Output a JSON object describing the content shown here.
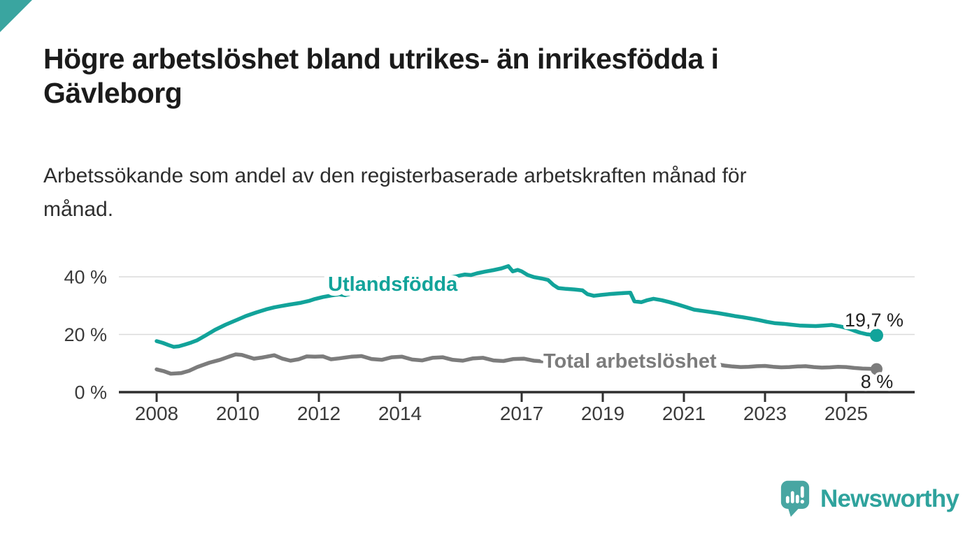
{
  "header": {
    "title_lines": [
      "Högre arbetslöshet bland utrikes- än inrikesfödda i",
      "Gävleborg"
    ],
    "subtitle_lines": [
      "Arbetssökande som andel av den registerbaserade arbetskraften månad för",
      "månad."
    ]
  },
  "footer": {
    "brand": "Newsworthy"
  },
  "colors": {
    "accent_teal": "#12a39a",
    "line_gray": "#7c7c7c",
    "brand_teal_bubble": "#48a6a2",
    "brand_teal_text": "#2fa39d",
    "corner_triangle": "#3aa5a0",
    "grid": "#dadada",
    "axis": "#2f2f2f",
    "tick_label": "#3b3b3b",
    "end_label": "#222222"
  },
  "chart_data": {
    "type": "line",
    "title": "Högre arbetslöshet bland utrikes- än inrikesfödda i Gävleborg",
    "subtitle": "Arbetssökande som andel av den registerbaserade arbetskraften månad för månad.",
    "xlabel": "",
    "ylabel": "",
    "xlim": [
      2007.1,
      2026.7
    ],
    "ylim": [
      0,
      45
    ],
    "grid": "horizontal",
    "legend_position": "inline-labels",
    "xticks": [
      2008,
      2010,
      2012,
      2014,
      2017,
      2019,
      2021,
      2023,
      2025
    ],
    "yticks": [
      {
        "value": 0,
        "label": "0 %"
      },
      {
        "value": 20,
        "label": "20 %"
      },
      {
        "value": 40,
        "label": "40 %"
      }
    ],
    "series": [
      {
        "name": "Utlandsfödda",
        "color": "#12a39a",
        "end_label": "19,7 %",
        "end_value": 19.7,
        "points": [
          [
            2008.0,
            17.7
          ],
          [
            2008.15,
            17.1
          ],
          [
            2008.3,
            16.3
          ],
          [
            2008.42,
            15.7
          ],
          [
            2008.55,
            15.9
          ],
          [
            2008.7,
            16.5
          ],
          [
            2008.85,
            17.2
          ],
          [
            2009.0,
            18.0
          ],
          [
            2009.2,
            19.6
          ],
          [
            2009.44,
            21.6
          ],
          [
            2009.7,
            23.4
          ],
          [
            2010.0,
            25.2
          ],
          [
            2010.2,
            26.4
          ],
          [
            2010.45,
            27.6
          ],
          [
            2010.7,
            28.7
          ],
          [
            2010.9,
            29.4
          ],
          [
            2011.05,
            29.8
          ],
          [
            2011.25,
            30.3
          ],
          [
            2011.56,
            31.0
          ],
          [
            2011.75,
            31.6
          ],
          [
            2011.9,
            32.3
          ],
          [
            2012.1,
            33.0
          ],
          [
            2012.3,
            33.5
          ],
          [
            2012.5,
            33.9
          ],
          [
            2012.65,
            33.6
          ],
          [
            2012.8,
            34.2
          ],
          [
            2013.0,
            34.8
          ],
          [
            2013.25,
            35.4
          ],
          [
            2013.5,
            36.0
          ],
          [
            2013.75,
            36.7
          ],
          [
            2014.0,
            37.3
          ],
          [
            2014.25,
            37.9
          ],
          [
            2014.5,
            38.4
          ],
          [
            2014.75,
            39.0
          ],
          [
            2015.0,
            39.4
          ],
          [
            2015.2,
            39.7
          ],
          [
            2015.4,
            40.2
          ],
          [
            2015.6,
            40.8
          ],
          [
            2015.75,
            40.6
          ],
          [
            2015.9,
            41.2
          ],
          [
            2016.1,
            41.8
          ],
          [
            2016.3,
            42.3
          ],
          [
            2016.5,
            42.9
          ],
          [
            2016.67,
            43.7
          ],
          [
            2016.78,
            41.9
          ],
          [
            2016.9,
            42.4
          ],
          [
            2017.0,
            41.9
          ],
          [
            2017.15,
            40.6
          ],
          [
            2017.3,
            39.9
          ],
          [
            2017.5,
            39.4
          ],
          [
            2017.65,
            38.9
          ],
          [
            2017.78,
            37.2
          ],
          [
            2017.9,
            36.1
          ],
          [
            2018.1,
            35.8
          ],
          [
            2018.3,
            35.6
          ],
          [
            2018.5,
            35.3
          ],
          [
            2018.62,
            34.0
          ],
          [
            2018.78,
            33.4
          ],
          [
            2018.95,
            33.7
          ],
          [
            2019.15,
            34.0
          ],
          [
            2019.35,
            34.2
          ],
          [
            2019.55,
            34.4
          ],
          [
            2019.68,
            34.5
          ],
          [
            2019.78,
            31.5
          ],
          [
            2019.95,
            31.2
          ],
          [
            2020.1,
            31.9
          ],
          [
            2020.25,
            32.4
          ],
          [
            2020.45,
            31.9
          ],
          [
            2020.65,
            31.2
          ],
          [
            2020.85,
            30.4
          ],
          [
            2021.05,
            29.5
          ],
          [
            2021.25,
            28.6
          ],
          [
            2021.45,
            28.2
          ],
          [
            2021.65,
            27.8
          ],
          [
            2021.85,
            27.4
          ],
          [
            2022.05,
            26.9
          ],
          [
            2022.25,
            26.4
          ],
          [
            2022.45,
            26.0
          ],
          [
            2022.65,
            25.5
          ],
          [
            2022.85,
            25.0
          ],
          [
            2023.05,
            24.4
          ],
          [
            2023.25,
            23.9
          ],
          [
            2023.45,
            23.7
          ],
          [
            2023.65,
            23.4
          ],
          [
            2023.85,
            23.1
          ],
          [
            2024.05,
            23.0
          ],
          [
            2024.25,
            22.9
          ],
          [
            2024.45,
            23.1
          ],
          [
            2024.65,
            23.3
          ],
          [
            2024.85,
            22.8
          ],
          [
            2025.05,
            22.1
          ],
          [
            2025.2,
            21.3
          ],
          [
            2025.35,
            20.6
          ],
          [
            2025.5,
            20.1
          ],
          [
            2025.62,
            19.9
          ],
          [
            2025.75,
            19.7
          ]
        ]
      },
      {
        "name": "Total arbetslöshet",
        "color": "#7c7c7c",
        "end_label": "8 %",
        "end_value": 8.0,
        "points": [
          [
            2008.0,
            7.9
          ],
          [
            2008.17,
            7.3
          ],
          [
            2008.35,
            6.4
          ],
          [
            2008.6,
            6.6
          ],
          [
            2008.8,
            7.4
          ],
          [
            2009.0,
            8.7
          ],
          [
            2009.3,
            10.2
          ],
          [
            2009.56,
            11.2
          ],
          [
            2009.8,
            12.4
          ],
          [
            2009.95,
            13.1
          ],
          [
            2010.1,
            12.9
          ],
          [
            2010.4,
            11.6
          ],
          [
            2010.6,
            12.0
          ],
          [
            2010.9,
            12.8
          ],
          [
            2011.1,
            11.6
          ],
          [
            2011.3,
            10.9
          ],
          [
            2011.5,
            11.4
          ],
          [
            2011.7,
            12.4
          ],
          [
            2011.9,
            12.3
          ],
          [
            2012.1,
            12.4
          ],
          [
            2012.3,
            11.4
          ],
          [
            2012.5,
            11.7
          ],
          [
            2012.8,
            12.3
          ],
          [
            2013.05,
            12.5
          ],
          [
            2013.3,
            11.5
          ],
          [
            2013.55,
            11.2
          ],
          [
            2013.8,
            12.1
          ],
          [
            2014.05,
            12.3
          ],
          [
            2014.3,
            11.3
          ],
          [
            2014.55,
            11.0
          ],
          [
            2014.8,
            11.9
          ],
          [
            2015.05,
            12.1
          ],
          [
            2015.3,
            11.2
          ],
          [
            2015.55,
            10.9
          ],
          [
            2015.8,
            11.7
          ],
          [
            2016.05,
            11.9
          ],
          [
            2016.3,
            11.0
          ],
          [
            2016.55,
            10.8
          ],
          [
            2016.8,
            11.5
          ],
          [
            2017.05,
            11.6
          ],
          [
            2017.3,
            10.9
          ],
          [
            2017.5,
            10.7
          ],
          [
            2017.8,
            11.2
          ],
          [
            2018.05,
            11.3
          ],
          [
            2018.3,
            10.5
          ],
          [
            2018.55,
            10.2
          ],
          [
            2018.8,
            10.8
          ],
          [
            2019.05,
            10.9
          ],
          [
            2019.3,
            10.1
          ],
          [
            2019.55,
            9.8
          ],
          [
            2019.8,
            10.2
          ],
          [
            2020.05,
            10.6
          ],
          [
            2020.3,
            11.6
          ],
          [
            2020.55,
            11.2
          ],
          [
            2020.8,
            11.0
          ],
          [
            2021.05,
            10.8
          ],
          [
            2021.3,
            10.0
          ],
          [
            2021.55,
            9.6
          ],
          [
            2021.8,
            9.7
          ],
          [
            2022.0,
            9.2
          ],
          [
            2022.2,
            8.9
          ],
          [
            2022.4,
            8.7
          ],
          [
            2022.6,
            8.8
          ],
          [
            2022.8,
            9.0
          ],
          [
            2023.0,
            9.1
          ],
          [
            2023.2,
            8.8
          ],
          [
            2023.4,
            8.6
          ],
          [
            2023.6,
            8.7
          ],
          [
            2023.8,
            8.9
          ],
          [
            2024.0,
            9.0
          ],
          [
            2024.2,
            8.7
          ],
          [
            2024.4,
            8.5
          ],
          [
            2024.6,
            8.6
          ],
          [
            2024.8,
            8.8
          ],
          [
            2025.0,
            8.7
          ],
          [
            2025.2,
            8.4
          ],
          [
            2025.4,
            8.2
          ],
          [
            2025.6,
            8.1
          ],
          [
            2025.75,
            8.0
          ]
        ]
      }
    ]
  }
}
